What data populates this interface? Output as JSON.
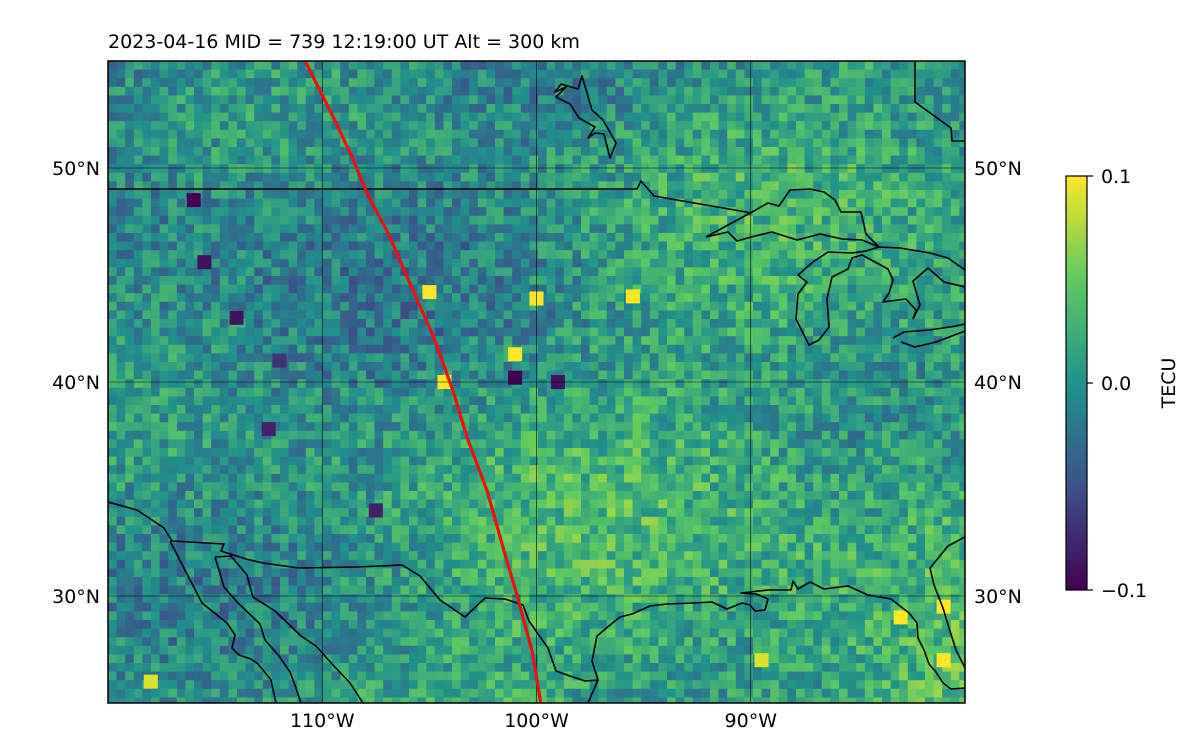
{
  "title": "2023-04-16  MID = 739    12:19:00  UT  Alt = 300 km",
  "map": {
    "lon_range": [
      -120,
      -80
    ],
    "lat_range": [
      25,
      55
    ],
    "lon_ticks": [
      {
        "value": -110,
        "label": "110°W"
      },
      {
        "value": -100,
        "label": "100°W"
      },
      {
        "value": -90,
        "label": "90°W"
      }
    ],
    "lat_ticks": [
      {
        "value": 50,
        "label": "50°N"
      },
      {
        "value": 40,
        "label": "40°N"
      },
      {
        "value": 30,
        "label": "30°N"
      }
    ],
    "gridlines": true,
    "basemap": "coastlines and national borders",
    "track_color": "#e8130d",
    "track": [
      [
        -110.8,
        55.0
      ],
      [
        -110.2,
        53.8
      ],
      [
        -109.4,
        52.2
      ],
      [
        -108.6,
        50.5
      ],
      [
        -107.9,
        48.8
      ],
      [
        -106.9,
        46.9
      ],
      [
        -105.9,
        44.6
      ],
      [
        -104.8,
        42.1
      ],
      [
        -103.9,
        39.6
      ],
      [
        -103.2,
        37.3
      ],
      [
        -102.3,
        34.9
      ],
      [
        -101.6,
        32.4
      ],
      [
        -100.9,
        30.0
      ],
      [
        -100.2,
        27.4
      ],
      [
        -99.8,
        25.0
      ]
    ]
  },
  "colorbar": {
    "label": "TECU",
    "min": -0.1,
    "max": 0.1,
    "ticks": [
      {
        "value": 0.1,
        "label": "0.1"
      },
      {
        "value": 0.0,
        "label": "0.0"
      },
      {
        "value": -0.1,
        "label": "−0.1"
      }
    ],
    "colormap": "viridis",
    "colors": [
      "#440154",
      "#3b528b",
      "#21918c",
      "#5ec962",
      "#fde725"
    ]
  },
  "hotspots": [
    {
      "lon": -104.3,
      "lat": 40.0,
      "value": 0.1
    },
    {
      "lon": -101.0,
      "lat": 41.3,
      "value": 0.1
    },
    {
      "lon": -100.0,
      "lat": 43.9,
      "value": 0.1
    },
    {
      "lon": -95.5,
      "lat": 44.0,
      "value": 0.1
    },
    {
      "lon": -105.0,
      "lat": 44.2,
      "value": 0.1
    },
    {
      "lon": -81.0,
      "lat": 27.0,
      "value": 0.1
    },
    {
      "lon": -83.0,
      "lat": 29.0,
      "value": 0.1
    },
    {
      "lon": -81.0,
      "lat": 29.5,
      "value": 0.1
    },
    {
      "lon": -118.0,
      "lat": 26.0,
      "value": 0.09
    },
    {
      "lon": -89.5,
      "lat": 27.0,
      "value": 0.09
    },
    {
      "lon": -116.0,
      "lat": 48.5,
      "value": -0.1
    },
    {
      "lon": -101.0,
      "lat": 40.2,
      "value": -0.1
    },
    {
      "lon": -99.0,
      "lat": 40.0,
      "value": -0.09
    },
    {
      "lon": -114.0,
      "lat": 43.0,
      "value": -0.09
    },
    {
      "lon": -112.5,
      "lat": 37.8,
      "value": -0.08
    },
    {
      "lon": -107.5,
      "lat": 34.0,
      "value": -0.08
    },
    {
      "lon": -115.5,
      "lat": 45.6,
      "value": -0.09
    },
    {
      "lon": -112.0,
      "lat": 41.0,
      "value": -0.07
    }
  ]
}
